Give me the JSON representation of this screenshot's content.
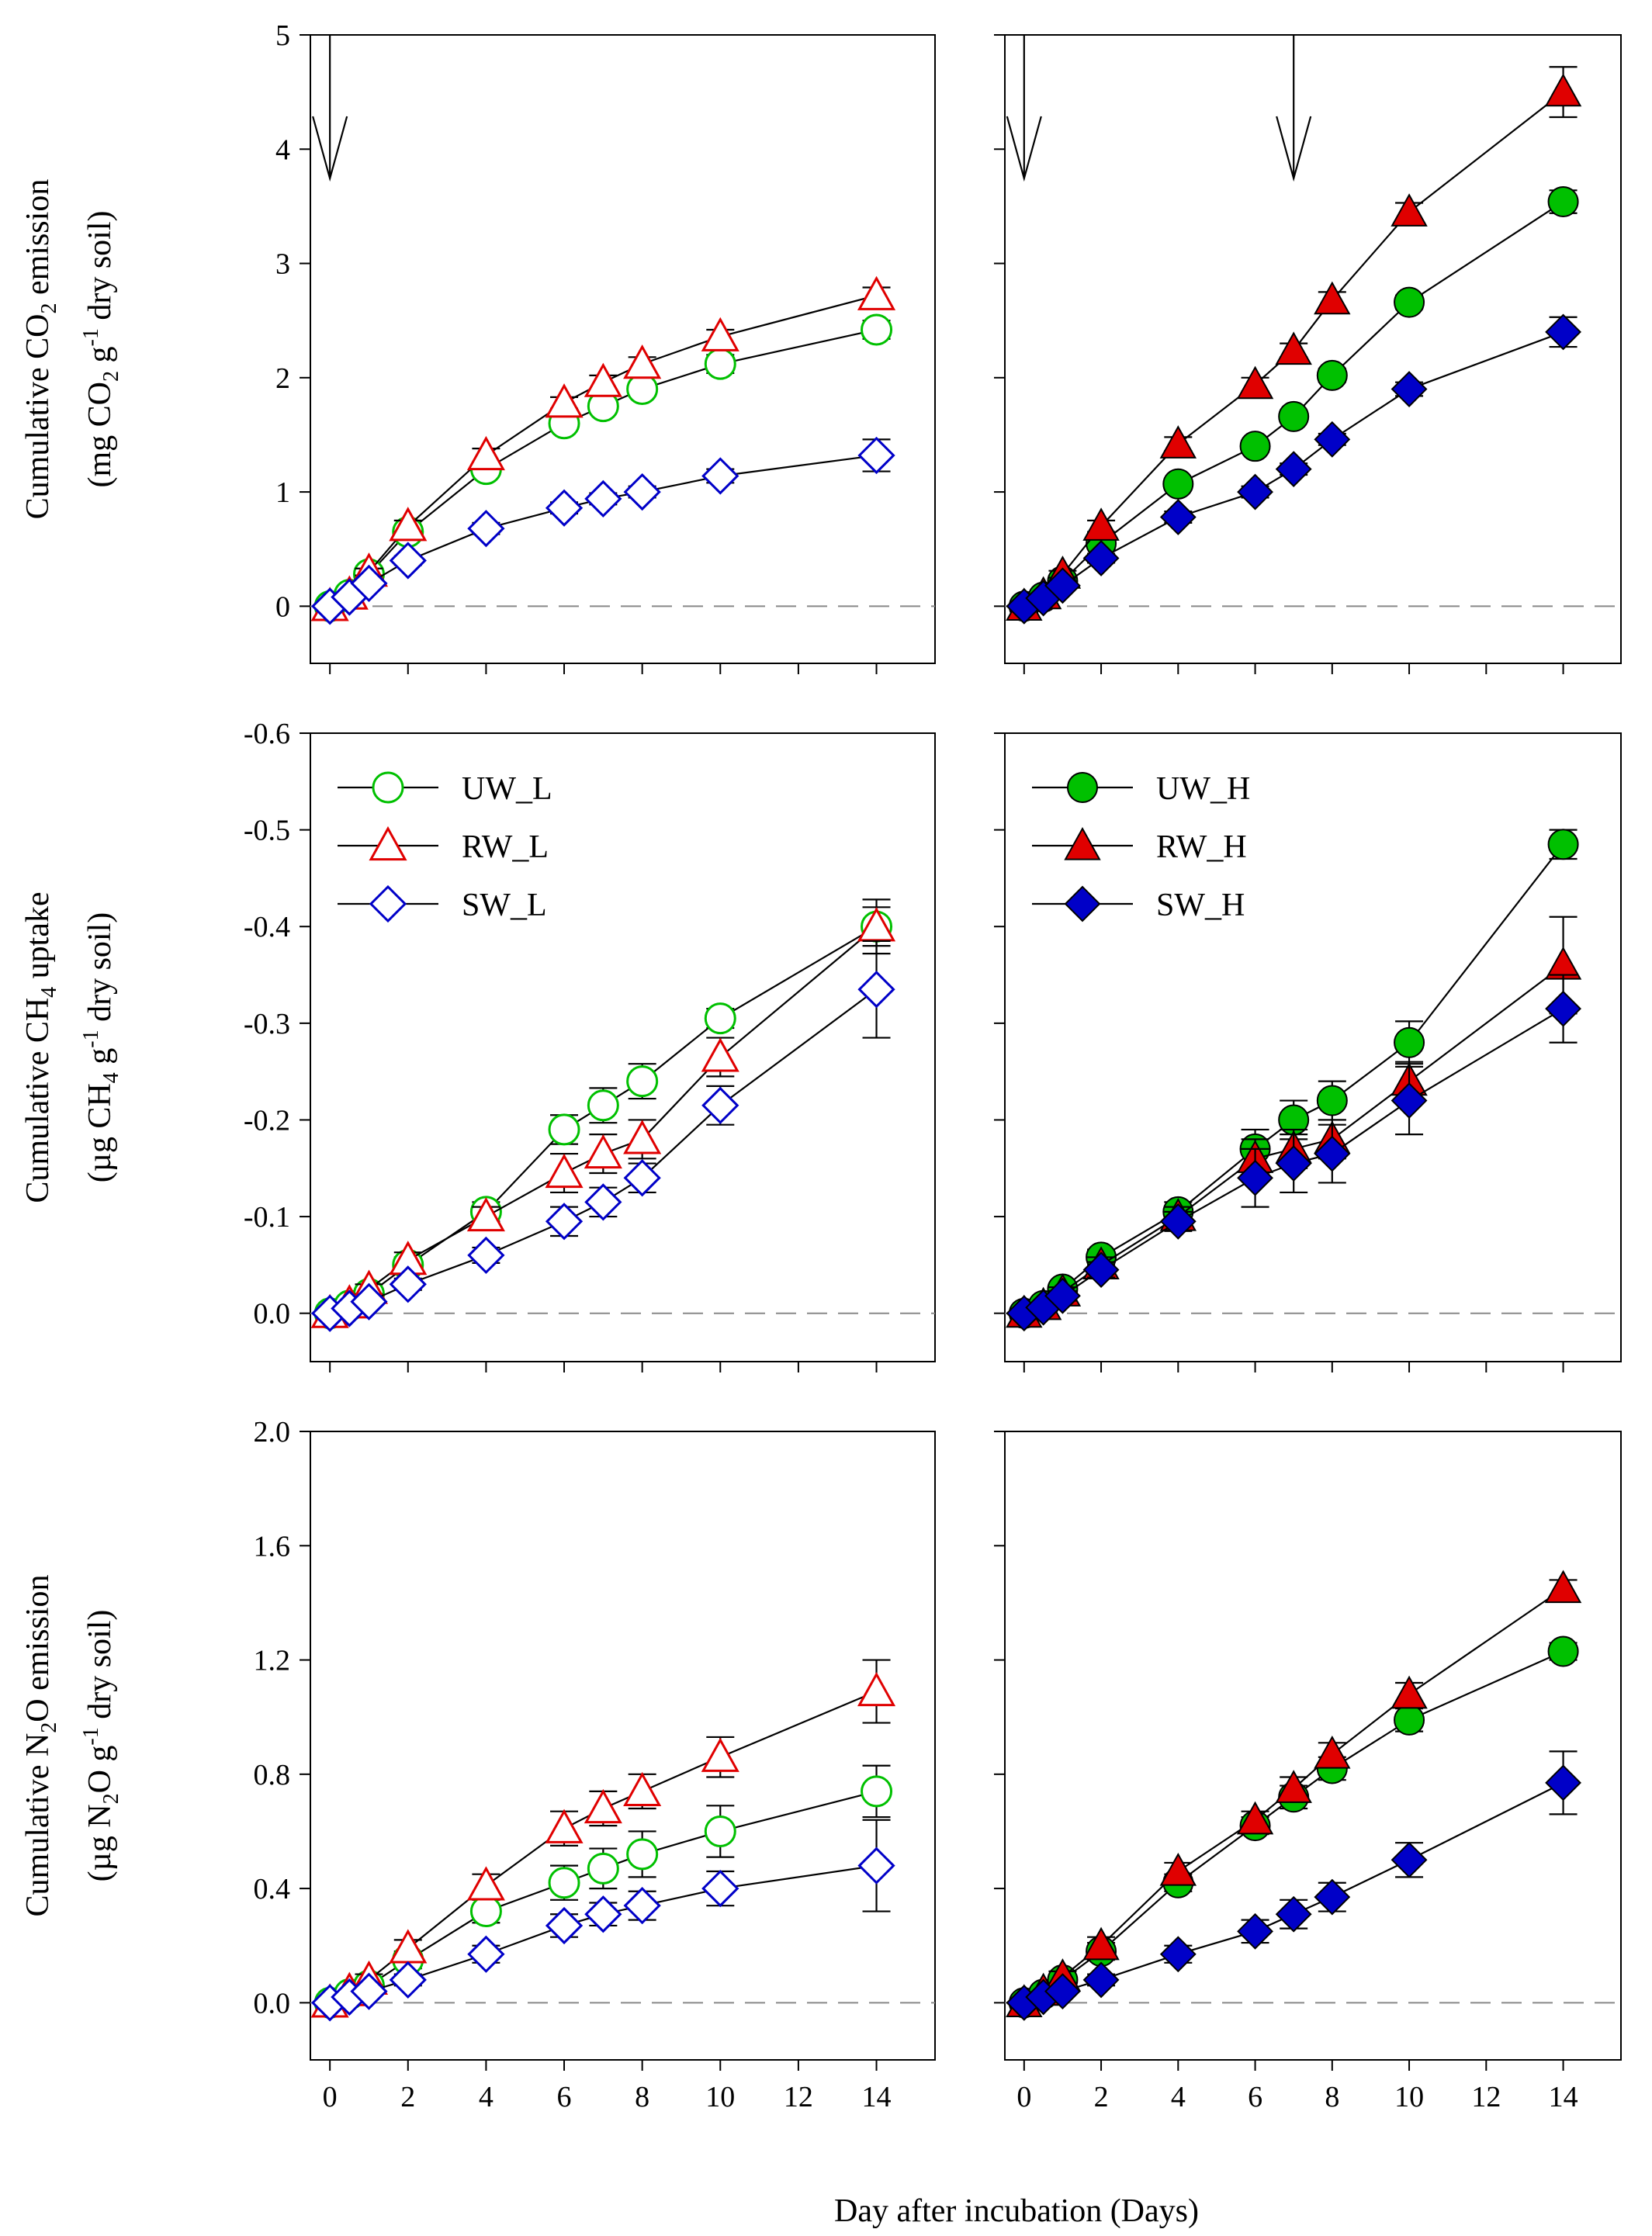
{
  "figure": {
    "shared_xlabel": "Day after incubation (Days)",
    "x_tick_labels": [
      "0",
      "2",
      "4",
      "6",
      "8",
      "10",
      "12",
      "14"
    ]
  },
  "colors": {
    "UW": "#00c000",
    "RW": "#e00000",
    "SW": "#0000c8",
    "zero_line": "#888888"
  },
  "legend": {
    "left": [
      {
        "label": "UW_L",
        "marker": "circle",
        "filled": false,
        "color": "#00c000"
      },
      {
        "label": "RW_L",
        "marker": "triangle",
        "filled": false,
        "color": "#e00000"
      },
      {
        "label": "SW_L",
        "marker": "diamond",
        "filled": false,
        "color": "#0000c8"
      }
    ],
    "right": [
      {
        "label": "UW_H",
        "marker": "circle",
        "filled": true,
        "color": "#00c000"
      },
      {
        "label": "RW_H",
        "marker": "triangle",
        "filled": true,
        "color": "#e00000"
      },
      {
        "label": "SW_H",
        "marker": "diamond",
        "filled": true,
        "color": "#0000c8"
      }
    ]
  },
  "chart_data": [
    {
      "id": "co2-left",
      "type": "line",
      "row": 0,
      "col": 0,
      "ylabel_line1": "Cumulative CO",
      "ylabel_sub1": "2",
      "ylabel_after1": " emission",
      "ylabel_line2": "(mg CO",
      "ylabel_sub2": "2",
      "ylabel_mid2": " g",
      "ylabel_sup2": "-1",
      "ylabel_after2": " dry soil)",
      "ylim": [
        -0.5,
        5
      ],
      "y_ticks": [
        0,
        1,
        2,
        3,
        4,
        5
      ],
      "y_tick_labels": [
        "0",
        "1",
        "2",
        "3",
        "4",
        "5"
      ],
      "xlim": [
        -0.5,
        15.5
      ],
      "arrows_at_day": [
        0
      ],
      "series": [
        {
          "name": "UW_L",
          "marker": "circle",
          "filled": false,
          "color": "#00c000",
          "x": [
            0,
            0.5,
            1,
            2,
            4,
            6,
            7,
            8,
            10,
            14
          ],
          "y": [
            0,
            0.1,
            0.28,
            0.65,
            1.2,
            1.6,
            1.75,
            1.9,
            2.12,
            2.42
          ],
          "err": [
            0,
            0,
            0.03,
            0.05,
            0.05,
            0.06,
            0.06,
            0.06,
            0.08,
            0.08
          ]
        },
        {
          "name": "RW_L",
          "marker": "triangle",
          "filled": false,
          "color": "#e00000",
          "x": [
            0,
            0.5,
            1,
            2,
            4,
            6,
            7,
            8,
            10,
            14
          ],
          "y": [
            0,
            0.1,
            0.3,
            0.7,
            1.32,
            1.78,
            1.96,
            2.12,
            2.36,
            2.72
          ],
          "err": [
            0,
            0,
            0.03,
            0.05,
            0.06,
            0.05,
            0.06,
            0.06,
            0.06,
            0.07
          ]
        },
        {
          "name": "SW_L",
          "marker": "diamond",
          "filled": false,
          "color": "#0000c8",
          "x": [
            0,
            0.5,
            1,
            2,
            4,
            6,
            7,
            8,
            10,
            14
          ],
          "y": [
            0,
            0.08,
            0.2,
            0.4,
            0.68,
            0.86,
            0.94,
            1.0,
            1.14,
            1.32
          ],
          "err": [
            0,
            0,
            0.02,
            0.04,
            0.05,
            0.05,
            0.05,
            0.05,
            0.06,
            0.14
          ]
        }
      ]
    },
    {
      "id": "co2-right",
      "type": "line",
      "row": 0,
      "col": 1,
      "ylim": [
        -0.5,
        5
      ],
      "y_ticks": [
        0,
        1,
        2,
        3,
        4,
        5
      ],
      "xlim": [
        -0.5,
        15.5
      ],
      "arrows_at_day": [
        0,
        7
      ],
      "series": [
        {
          "name": "UW_H",
          "marker": "circle",
          "filled": true,
          "color": "#00c000",
          "x": [
            0,
            0.5,
            1,
            2,
            4,
            6,
            7,
            8,
            10,
            14
          ],
          "y": [
            0,
            0.08,
            0.22,
            0.55,
            1.07,
            1.4,
            1.66,
            2.02,
            2.66,
            3.54
          ],
          "err": [
            0,
            0,
            0.03,
            0.05,
            0.05,
            0.05,
            0.05,
            0.06,
            0.06,
            0.1
          ]
        },
        {
          "name": "RW_H",
          "marker": "triangle",
          "filled": true,
          "color": "#e00000",
          "x": [
            0,
            0.5,
            1,
            2,
            4,
            6,
            7,
            8,
            10,
            14
          ],
          "y": [
            0,
            0.1,
            0.28,
            0.7,
            1.42,
            1.94,
            2.24,
            2.68,
            3.45,
            4.5
          ],
          "err": [
            0,
            0,
            0.03,
            0.05,
            0.06,
            0.06,
            0.06,
            0.07,
            0.08,
            0.22
          ]
        },
        {
          "name": "SW_H",
          "marker": "diamond",
          "filled": true,
          "color": "#0000c8",
          "x": [
            0,
            0.5,
            1,
            2,
            4,
            6,
            7,
            8,
            10,
            14
          ],
          "y": [
            0,
            0.07,
            0.18,
            0.42,
            0.78,
            1.0,
            1.2,
            1.46,
            1.9,
            2.4
          ],
          "err": [
            0,
            0,
            0.02,
            0.04,
            0.05,
            0.05,
            0.05,
            0.05,
            0.06,
            0.13
          ]
        }
      ]
    },
    {
      "id": "ch4-left",
      "type": "line",
      "row": 1,
      "col": 0,
      "ylabel_line1": "Cumulative CH",
      "ylabel_sub1": "4",
      "ylabel_after1": " uptake",
      "ylabel_line2": "(µg CH",
      "ylabel_sub2": "4",
      "ylabel_mid2": " g",
      "ylabel_sup2": "-1",
      "ylabel_after2": " dry soil)",
      "ylim": [
        0.05,
        -0.6
      ],
      "y_ticks": [
        0,
        -0.1,
        -0.2,
        -0.3,
        -0.4,
        -0.5,
        -0.6
      ],
      "y_tick_labels": [
        "0.0",
        "-0.1",
        "-0.2",
        "-0.3",
        "-0.4",
        "-0.5",
        "-0.6"
      ],
      "xlim": [
        -0.5,
        15.5
      ],
      "arrows_at_day": [],
      "series": [
        {
          "name": "UW_L",
          "marker": "circle",
          "filled": false,
          "color": "#00c000",
          "x": [
            0,
            0.5,
            1,
            2,
            4,
            6,
            7,
            8,
            10,
            14
          ],
          "y": [
            0,
            -0.008,
            -0.02,
            -0.05,
            -0.105,
            -0.19,
            -0.215,
            -0.24,
            -0.305,
            -0.4
          ],
          "err": [
            0,
            0,
            0.005,
            0.008,
            0.01,
            0.015,
            0.018,
            0.018,
            0.01,
            0.028
          ]
        },
        {
          "name": "RW_L",
          "marker": "triangle",
          "filled": false,
          "color": "#e00000",
          "x": [
            0,
            0.5,
            1,
            2,
            4,
            6,
            7,
            8,
            10,
            14
          ],
          "y": [
            0,
            -0.01,
            -0.025,
            -0.055,
            -0.1,
            -0.145,
            -0.165,
            -0.18,
            -0.265,
            -0.4
          ],
          "err": [
            0,
            0,
            0.005,
            0.008,
            0.01,
            0.02,
            0.02,
            0.02,
            0.02,
            0.02
          ]
        },
        {
          "name": "SW_L",
          "marker": "diamond",
          "filled": false,
          "color": "#0000c8",
          "x": [
            0,
            0.5,
            1,
            2,
            4,
            6,
            7,
            8,
            10,
            14
          ],
          "y": [
            0,
            -0.005,
            -0.012,
            -0.03,
            -0.06,
            -0.095,
            -0.115,
            -0.14,
            -0.215,
            -0.335
          ],
          "err": [
            0,
            0,
            0.004,
            0.006,
            0.008,
            0.015,
            0.015,
            0.015,
            0.02,
            0.05
          ]
        }
      ]
    },
    {
      "id": "ch4-right",
      "type": "line",
      "row": 1,
      "col": 1,
      "ylim": [
        0.05,
        -0.6
      ],
      "y_ticks": [
        0,
        -0.1,
        -0.2,
        -0.3,
        -0.4,
        -0.5,
        -0.6
      ],
      "xlim": [
        -0.5,
        15.5
      ],
      "arrows_at_day": [],
      "series": [
        {
          "name": "UW_H",
          "marker": "circle",
          "filled": true,
          "color": "#00c000",
          "x": [
            0,
            0.5,
            1,
            2,
            4,
            6,
            7,
            8,
            10,
            14
          ],
          "y": [
            0,
            -0.008,
            -0.025,
            -0.058,
            -0.105,
            -0.17,
            -0.2,
            -0.22,
            -0.28,
            -0.485
          ],
          "err": [
            0,
            0,
            0.005,
            0.008,
            0.01,
            0.02,
            0.02,
            0.02,
            0.022,
            0.015
          ]
        },
        {
          "name": "RW_H",
          "marker": "triangle",
          "filled": true,
          "color": "#e00000",
          "x": [
            0,
            0.5,
            1,
            2,
            4,
            6,
            7,
            8,
            10,
            14
          ],
          "y": [
            0,
            -0.008,
            -0.022,
            -0.05,
            -0.1,
            -0.16,
            -0.17,
            -0.18,
            -0.24,
            -0.36
          ],
          "err": [
            0,
            0,
            0.005,
            0.008,
            0.01,
            0.02,
            0.02,
            0.02,
            0.02,
            0.05
          ]
        },
        {
          "name": "SW_H",
          "marker": "diamond",
          "filled": true,
          "color": "#0000c8",
          "x": [
            0,
            0.5,
            1,
            2,
            4,
            6,
            7,
            8,
            10,
            14
          ],
          "y": [
            0,
            -0.006,
            -0.018,
            -0.045,
            -0.095,
            -0.14,
            -0.155,
            -0.165,
            -0.22,
            -0.315
          ],
          "err": [
            0,
            0,
            0.005,
            0.008,
            0.01,
            0.03,
            0.03,
            0.03,
            0.035,
            0.035
          ]
        }
      ]
    },
    {
      "id": "n2o-left",
      "type": "line",
      "row": 2,
      "col": 0,
      "ylabel_line1": "Cumulative N",
      "ylabel_sub1": "2",
      "ylabel_after1": "O emission",
      "ylabel_line2": "(µg N",
      "ylabel_sub2": "2",
      "ylabel_mid2": "O g",
      "ylabel_sup2": "-1",
      "ylabel_after2": " dry soil)",
      "ylim": [
        -0.2,
        2.0
      ],
      "y_ticks": [
        0,
        0.4,
        0.8,
        1.2,
        1.6,
        2.0
      ],
      "y_tick_labels": [
        "0.0",
        "0.4",
        "0.8",
        "1.2",
        "1.6",
        "2.0"
      ],
      "xlim": [
        -0.5,
        15.5
      ],
      "arrows_at_day": [],
      "series": [
        {
          "name": "UW_L",
          "marker": "circle",
          "filled": false,
          "color": "#00c000",
          "x": [
            0,
            0.5,
            1,
            2,
            4,
            6,
            7,
            8,
            10,
            14
          ],
          "y": [
            0,
            0.03,
            0.06,
            0.15,
            0.32,
            0.42,
            0.47,
            0.52,
            0.6,
            0.74
          ],
          "err": [
            0,
            0,
            0.02,
            0.03,
            0.04,
            0.06,
            0.07,
            0.08,
            0.09,
            0.09
          ]
        },
        {
          "name": "RW_L",
          "marker": "triangle",
          "filled": false,
          "color": "#e00000",
          "x": [
            0,
            0.5,
            1,
            2,
            4,
            6,
            7,
            8,
            10,
            14
          ],
          "y": [
            0,
            0.04,
            0.08,
            0.19,
            0.41,
            0.61,
            0.68,
            0.74,
            0.86,
            1.09
          ],
          "err": [
            0,
            0,
            0.02,
            0.03,
            0.04,
            0.06,
            0.06,
            0.06,
            0.07,
            0.11
          ]
        },
        {
          "name": "SW_L",
          "marker": "diamond",
          "filled": false,
          "color": "#0000c8",
          "x": [
            0,
            0.5,
            1,
            2,
            4,
            6,
            7,
            8,
            10,
            14
          ],
          "y": [
            0,
            0.02,
            0.04,
            0.08,
            0.17,
            0.27,
            0.31,
            0.34,
            0.4,
            0.48
          ],
          "err": [
            0,
            0,
            0.01,
            0.02,
            0.03,
            0.04,
            0.04,
            0.05,
            0.06,
            0.16
          ]
        }
      ]
    },
    {
      "id": "n2o-right",
      "type": "line",
      "row": 2,
      "col": 1,
      "ylim": [
        -0.2,
        2.0
      ],
      "y_ticks": [
        0,
        0.4,
        0.8,
        1.2,
        1.6,
        2.0
      ],
      "xlim": [
        -0.5,
        15.5
      ],
      "arrows_at_day": [],
      "series": [
        {
          "name": "UW_H",
          "marker": "circle",
          "filled": true,
          "color": "#00c000",
          "x": [
            0,
            0.5,
            1,
            2,
            4,
            6,
            7,
            8,
            10,
            14
          ],
          "y": [
            0,
            0.03,
            0.08,
            0.18,
            0.42,
            0.62,
            0.72,
            0.82,
            0.99,
            1.23
          ],
          "err": [
            0,
            0,
            0.02,
            0.03,
            0.03,
            0.03,
            0.04,
            0.04,
            0.04,
            0.03
          ]
        },
        {
          "name": "RW_H",
          "marker": "triangle",
          "filled": true,
          "color": "#e00000",
          "x": [
            0,
            0.5,
            1,
            2,
            4,
            6,
            7,
            8,
            10,
            14
          ],
          "y": [
            0,
            0.04,
            0.09,
            0.2,
            0.46,
            0.64,
            0.75,
            0.87,
            1.08,
            1.45
          ],
          "err": [
            0,
            0,
            0.02,
            0.03,
            0.03,
            0.03,
            0.04,
            0.04,
            0.04,
            0.03
          ]
        },
        {
          "name": "SW_H",
          "marker": "diamond",
          "filled": true,
          "color": "#0000c8",
          "x": [
            0,
            0.5,
            1,
            2,
            4,
            6,
            7,
            8,
            10,
            14
          ],
          "y": [
            0,
            0.02,
            0.04,
            0.08,
            0.17,
            0.25,
            0.31,
            0.37,
            0.5,
            0.77
          ],
          "err": [
            0,
            0,
            0.01,
            0.02,
            0.03,
            0.04,
            0.05,
            0.05,
            0.06,
            0.11
          ]
        }
      ]
    }
  ]
}
